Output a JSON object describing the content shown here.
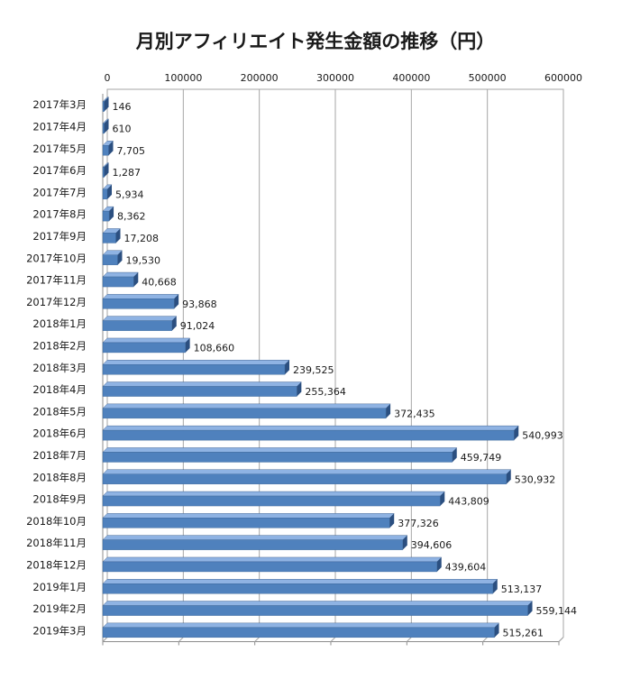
{
  "chart_data": {
    "type": "bar",
    "orientation": "horizontal",
    "title": "月別アフィリエイト発生金額の推移（円）",
    "xlabel": "",
    "ylabel": "",
    "xlim": [
      0,
      600000
    ],
    "ticks": [
      0,
      100000,
      200000,
      300000,
      400000,
      500000,
      600000
    ],
    "tick_labels": [
      "0",
      "100000",
      "200000",
      "300000",
      "400000",
      "500000",
      "600000"
    ],
    "axis_position": "top",
    "grid": true,
    "legend": "none",
    "style": "3d",
    "bar_color": "#4f81bd",
    "bar_top_color": "#8fb3e3",
    "bar_side_color": "#2b4f80",
    "categories": [
      "2017年3月",
      "2017年4月",
      "2017年5月",
      "2017年6月",
      "2017年7月",
      "2017年8月",
      "2017年9月",
      "2017年10月",
      "2017年11月",
      "2017年12月",
      "2018年1月",
      "2018年2月",
      "2018年3月",
      "2018年4月",
      "2018年5月",
      "2018年6月",
      "2018年7月",
      "2018年8月",
      "2018年9月",
      "2018年10月",
      "2018年11月",
      "2018年12月",
      "2019年1月",
      "2019年2月",
      "2019年3月"
    ],
    "values": [
      146,
      610,
      7705,
      1287,
      5934,
      8362,
      17208,
      19530,
      40668,
      93868,
      91024,
      108660,
      239525,
      255364,
      372435,
      540993,
      459749,
      530932,
      443809,
      377326,
      394606,
      439604,
      513137,
      559144,
      515261
    ],
    "value_labels": [
      "146",
      "610",
      "7,705",
      "1,287",
      "5,934",
      "8,362",
      "17,208",
      "19,530",
      "40,668",
      "93,868",
      "91,024",
      "108,660",
      "239,525",
      "255,364",
      "372,435",
      "540,993",
      "459,749",
      "530,932",
      "443,809",
      "377,326",
      "394,606",
      "439,604",
      "513,137",
      "559,144",
      "515,261"
    ]
  }
}
